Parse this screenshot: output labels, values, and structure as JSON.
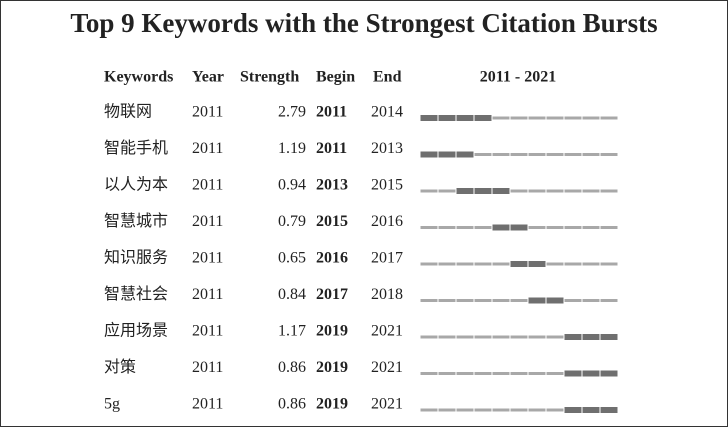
{
  "title": "Top 9 Keywords with the Strongest Citation Bursts",
  "header": {
    "keywords": "Keywords",
    "year": "Year",
    "strength": "Strength",
    "begin": "Begin",
    "end": "End",
    "range": "2011 - 2021"
  },
  "timeline": {
    "start": 2011,
    "end": 2021
  },
  "rows": [
    {
      "keyword": "物联网",
      "year": 2011,
      "strength": 2.79,
      "begin": 2011,
      "end": 2014
    },
    {
      "keyword": "智能手机",
      "year": 2011,
      "strength": 1.19,
      "begin": 2011,
      "end": 2013
    },
    {
      "keyword": "以人为本",
      "year": 2011,
      "strength": 0.94,
      "begin": 2013,
      "end": 2015
    },
    {
      "keyword": "智慧城市",
      "year": 2011,
      "strength": 0.79,
      "begin": 2015,
      "end": 2016
    },
    {
      "keyword": "知识服务",
      "year": 2011,
      "strength": 0.65,
      "begin": 2016,
      "end": 2017
    },
    {
      "keyword": "智慧社会",
      "year": 2011,
      "strength": 0.84,
      "begin": 2017,
      "end": 2018
    },
    {
      "keyword": "应用场景",
      "year": 2011,
      "strength": 1.17,
      "begin": 2019,
      "end": 2021
    },
    {
      "keyword": "对策",
      "year": 2011,
      "strength": 0.86,
      "begin": 2019,
      "end": 2021
    },
    {
      "keyword": "5g",
      "year": 2011,
      "strength": 0.86,
      "begin": 2019,
      "end": 2021
    }
  ]
}
